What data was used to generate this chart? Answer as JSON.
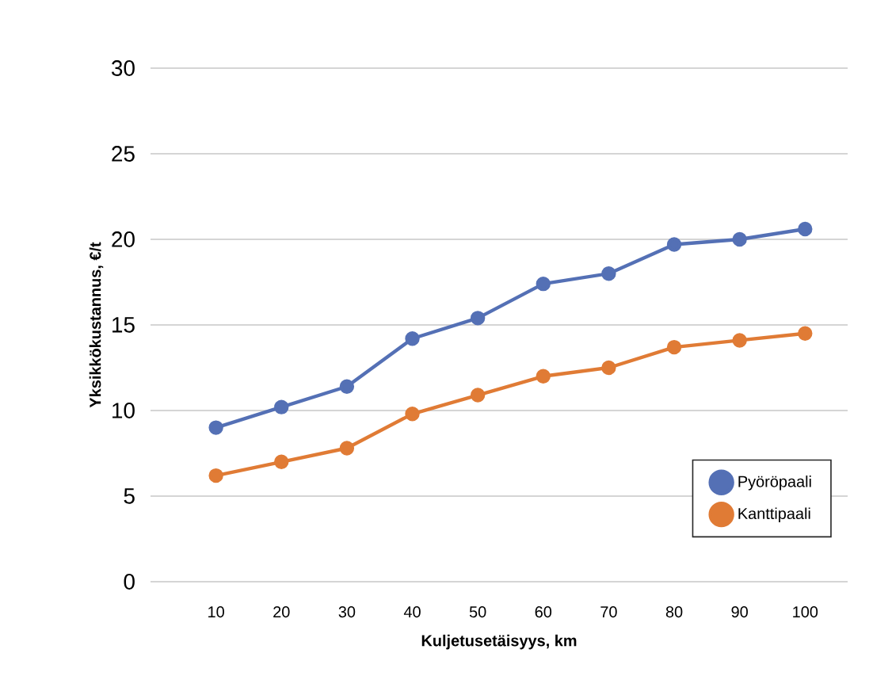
{
  "chart_data": {
    "type": "line",
    "xlabel": "Kuljetusetäisyys, km",
    "ylabel": "Yksikkökustannus, €/t",
    "categories": [
      "10",
      "20",
      "30",
      "40",
      "50",
      "60",
      "70",
      "80",
      "90",
      "100"
    ],
    "series": [
      {
        "name": "Pyöröpaali",
        "color": "#5470b5",
        "values": [
          9.0,
          10.2,
          11.4,
          14.2,
          15.4,
          17.4,
          18.0,
          19.7,
          20.0,
          20.6
        ]
      },
      {
        "name": "Kanttipaali",
        "color": "#e07b35",
        "values": [
          6.2,
          7.0,
          7.8,
          9.8,
          10.9,
          12.0,
          12.5,
          13.7,
          14.1,
          14.5
        ]
      }
    ],
    "ylim": [
      0,
      30
    ],
    "yticks": [
      0,
      5,
      10,
      15,
      20,
      25,
      30
    ],
    "grid": "y",
    "legend": "bottom right",
    "marker": "circle",
    "line_style": "solid"
  }
}
